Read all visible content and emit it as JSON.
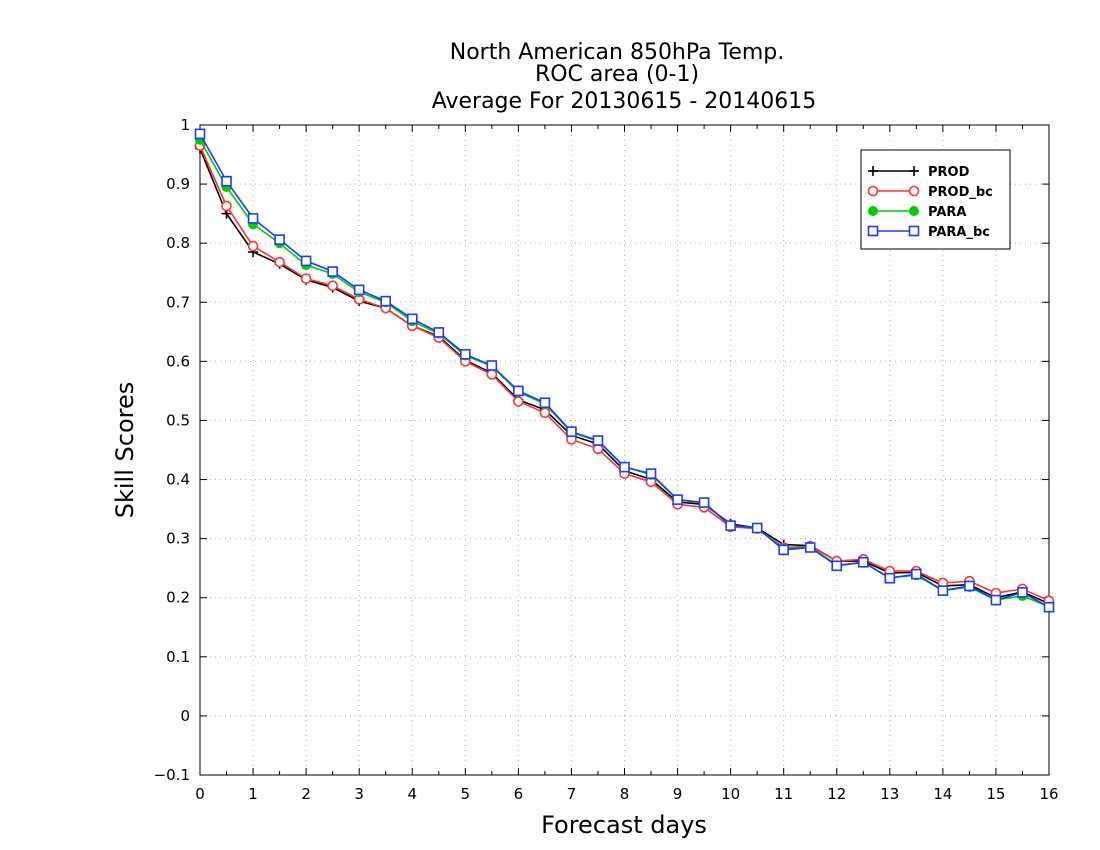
{
  "chart_data": {
    "type": "line",
    "title": "North American 850hPa Temp.",
    "subtitle": "ROC area (0-1)",
    "subtitle2": "Average For 20130615 - 20140615",
    "xlabel": "Forecast days",
    "ylabel": "Skill Scores",
    "xlim": [
      0,
      16
    ],
    "ylim": [
      -0.1,
      1
    ],
    "xticks": [
      "0",
      "1",
      "2",
      "3",
      "4",
      "5",
      "6",
      "7",
      "8",
      "9",
      "10",
      "11",
      "12",
      "13",
      "14",
      "15",
      "16"
    ],
    "yticks": [
      "-0.1",
      "0",
      "0.1",
      "0.2",
      "0.3",
      "0.4",
      "0.5",
      "0.6",
      "0.7",
      "0.8",
      "0.9",
      "1"
    ],
    "grid": true,
    "legend_position": "top-right",
    "x": [
      0,
      0.5,
      1,
      1.5,
      2,
      2.5,
      3,
      3.5,
      4,
      4.5,
      5,
      5.5,
      6,
      6.5,
      7,
      7.5,
      8,
      8.5,
      9,
      9.5,
      10,
      10.5,
      11,
      11.5,
      12,
      12.5,
      13,
      13.5,
      14,
      14.5,
      15,
      15.5,
      16
    ],
    "series": [
      {
        "name": "PROD",
        "color": "#000000",
        "marker": "plus",
        "values": [
          0.96,
          0.85,
          0.785,
          0.765,
          0.738,
          0.725,
          0.702,
          0.69,
          0.66,
          0.642,
          0.602,
          0.58,
          0.535,
          0.518,
          0.475,
          0.46,
          0.415,
          0.4,
          0.362,
          0.358,
          0.325,
          0.318,
          0.29,
          0.288,
          0.262,
          0.262,
          0.242,
          0.243,
          0.22,
          0.222,
          0.2,
          0.21,
          0.19
        ]
      },
      {
        "name": "PROD_bc",
        "color": "#ff3333",
        "marker": "circle-open",
        "values": [
          0.965,
          0.863,
          0.795,
          0.768,
          0.74,
          0.728,
          0.705,
          0.69,
          0.66,
          0.64,
          0.6,
          0.578,
          0.532,
          0.513,
          0.468,
          0.452,
          0.41,
          0.396,
          0.358,
          0.353,
          0.32,
          0.317,
          0.285,
          0.287,
          0.262,
          0.265,
          0.245,
          0.245,
          0.225,
          0.228,
          0.208,
          0.215,
          0.195
        ]
      },
      {
        "name": "PARA",
        "color": "#00cc00",
        "marker": "circle-filled",
        "values": [
          0.975,
          0.895,
          0.832,
          0.8,
          0.763,
          0.748,
          0.717,
          0.7,
          0.668,
          0.647,
          0.61,
          0.592,
          0.548,
          0.528,
          0.48,
          0.465,
          0.422,
          0.408,
          0.366,
          0.36,
          0.322,
          0.318,
          0.283,
          0.286,
          0.255,
          0.26,
          0.234,
          0.238,
          0.212,
          0.218,
          0.196,
          0.203,
          0.185
        ]
      },
      {
        "name": "PARA_bc",
        "color": "#1a3cff",
        "marker": "square-open",
        "values": [
          0.985,
          0.905,
          0.842,
          0.806,
          0.77,
          0.752,
          0.721,
          0.702,
          0.672,
          0.649,
          0.612,
          0.593,
          0.55,
          0.53,
          0.481,
          0.466,
          0.421,
          0.41,
          0.366,
          0.361,
          0.322,
          0.318,
          0.281,
          0.285,
          0.254,
          0.26,
          0.233,
          0.24,
          0.212,
          0.22,
          0.196,
          0.209,
          0.184
        ]
      }
    ]
  }
}
